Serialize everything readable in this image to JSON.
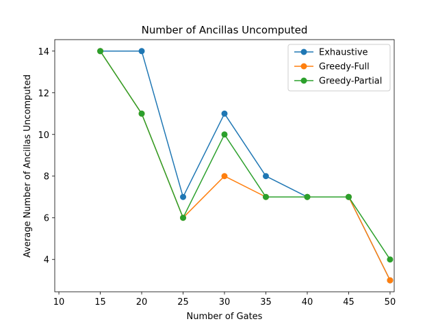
{
  "chart_data": {
    "type": "line",
    "title": "Number of Ancillas Uncomputed",
    "xlabel": "Number of Gates",
    "ylabel": "Average Number of Ancillas Uncomputed",
    "xlim": [
      9.5,
      50.5
    ],
    "ylim": [
      2.45,
      14.55
    ],
    "xticks": [
      10,
      15,
      20,
      25,
      30,
      35,
      40,
      45,
      50
    ],
    "yticks": [
      4,
      6,
      8,
      10,
      12,
      14
    ],
    "grid": false,
    "legend_position": "top-right",
    "series": [
      {
        "name": "Exhaustive",
        "color": "#1f77b4",
        "x": [
          15,
          20,
          25,
          30,
          35,
          40,
          45,
          50
        ],
        "y": [
          14,
          14,
          7,
          11,
          8,
          7,
          7,
          3
        ]
      },
      {
        "name": "Greedy-Full",
        "color": "#ff7f0e",
        "x": [
          15,
          20,
          25,
          30,
          35,
          40,
          45,
          50
        ],
        "y": [
          14,
          11,
          6,
          8,
          7,
          7,
          7,
          3
        ]
      },
      {
        "name": "Greedy-Partial",
        "color": "#2ca02c",
        "x": [
          15,
          20,
          25,
          30,
          35,
          40,
          45,
          50
        ],
        "y": [
          14,
          11,
          6,
          10,
          7,
          7,
          7,
          4
        ]
      }
    ]
  }
}
